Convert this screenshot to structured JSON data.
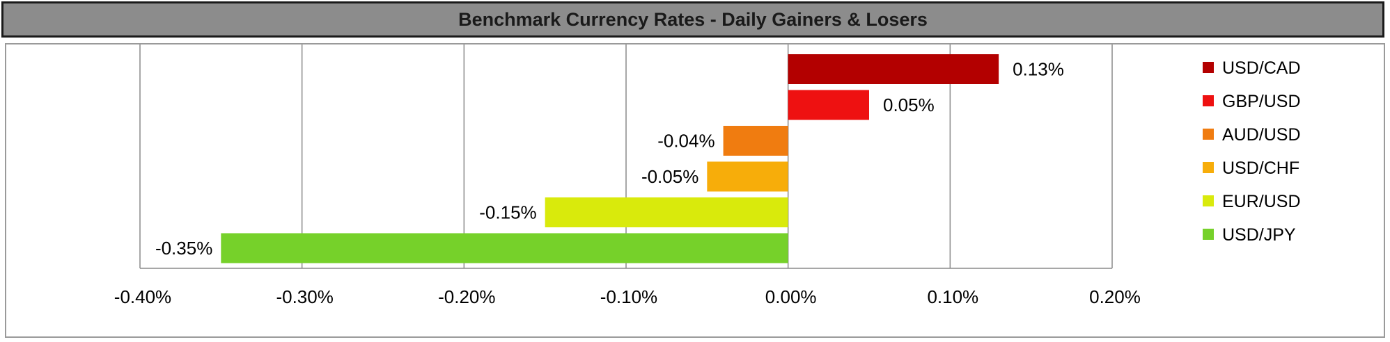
{
  "chart_data": {
    "type": "bar",
    "orientation": "horizontal",
    "title": "Benchmark Currency Rates - Daily Gainers & Losers",
    "categories": [
      "USD/CAD",
      "GBP/USD",
      "AUD/USD",
      "USD/CHF",
      "EUR/USD",
      "USD/JPY"
    ],
    "values": [
      0.13,
      0.05,
      -0.04,
      -0.05,
      -0.15,
      -0.35
    ],
    "data_labels": [
      "0.13%",
      "0.05%",
      "-0.04%",
      "-0.05%",
      "-0.15%",
      "-0.35%"
    ],
    "colors": [
      "#b30000",
      "#ee1111",
      "#f07c10",
      "#f7ad0a",
      "#d9ea0c",
      "#76d12a"
    ],
    "x_ticks": [
      -0.4,
      -0.3,
      -0.2,
      -0.1,
      0.0,
      0.1,
      0.2
    ],
    "x_tick_labels": [
      "-0.40%",
      "-0.30%",
      "-0.20%",
      "-0.10%",
      "0.00%",
      "0.10%",
      "0.20%"
    ],
    "xlim": [
      -0.4,
      0.2
    ],
    "grid": "vertical",
    "legend": "right"
  }
}
